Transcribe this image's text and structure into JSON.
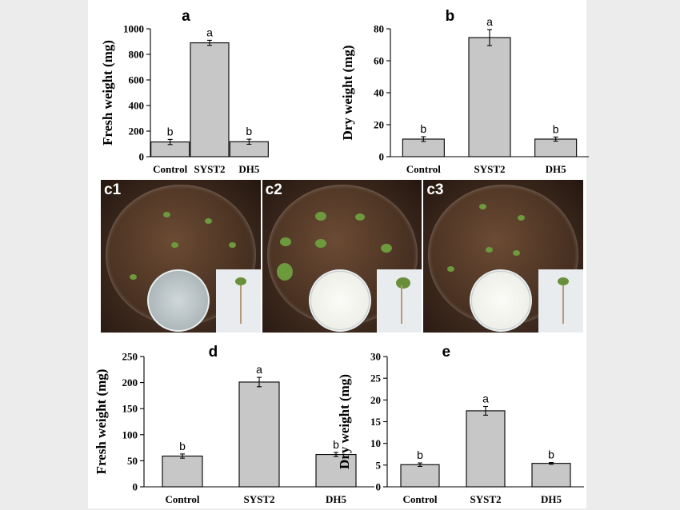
{
  "colors": {
    "bar_fill": "#c7c7c7",
    "frame": "#ffffff",
    "background": "#ececec"
  },
  "chart_data": [
    {
      "panel": "a",
      "type": "bar",
      "categories": [
        "Control",
        "SYST2",
        "DH5"
      ],
      "values": [
        115,
        890,
        117
      ],
      "errors": [
        20,
        20,
        20
      ],
      "significance": [
        "b",
        "a",
        "b"
      ],
      "ylabel": "Fresh weight (mg)",
      "ylim": [
        0,
        1000
      ],
      "yticks": [
        0,
        200,
        400,
        600,
        800,
        1000
      ]
    },
    {
      "panel": "b",
      "type": "bar",
      "categories": [
        "Control",
        "SYST2",
        "DH5"
      ],
      "values": [
        11,
        74.5,
        11
      ],
      "errors": [
        1.5,
        5,
        1.3
      ],
      "significance": [
        "b",
        "a",
        "b"
      ],
      "ylabel": "Dry weight (mg)",
      "ylim": [
        0,
        80
      ],
      "yticks": [
        0,
        20,
        40,
        60,
        80
      ]
    },
    {
      "panel": "d",
      "type": "bar",
      "categories": [
        "Control",
        "SYST2",
        "DH5"
      ],
      "values": [
        59,
        201,
        62
      ],
      "errors": [
        4,
        9,
        4
      ],
      "significance": [
        "b",
        "a",
        "b"
      ],
      "ylabel": "Fresh weight (mg)",
      "ylim": [
        0,
        250
      ],
      "yticks": [
        0,
        50,
        100,
        150,
        200,
        250
      ]
    },
    {
      "panel": "e",
      "type": "bar",
      "categories": [
        "Control",
        "SYST2",
        "DH5"
      ],
      "values": [
        5.1,
        17.5,
        5.4
      ],
      "errors": [
        0.4,
        1.0,
        0.2
      ],
      "significance": [
        "b",
        "a",
        "b"
      ],
      "ylabel": "Dry weight (mg)",
      "ylim": [
        0,
        30
      ],
      "yticks": [
        0,
        5,
        10,
        15,
        20,
        25,
        30
      ]
    }
  ],
  "photos": [
    {
      "label": "c1",
      "colony": false
    },
    {
      "label": "c2",
      "colony": true
    },
    {
      "label": "c3",
      "colony": true
    }
  ]
}
